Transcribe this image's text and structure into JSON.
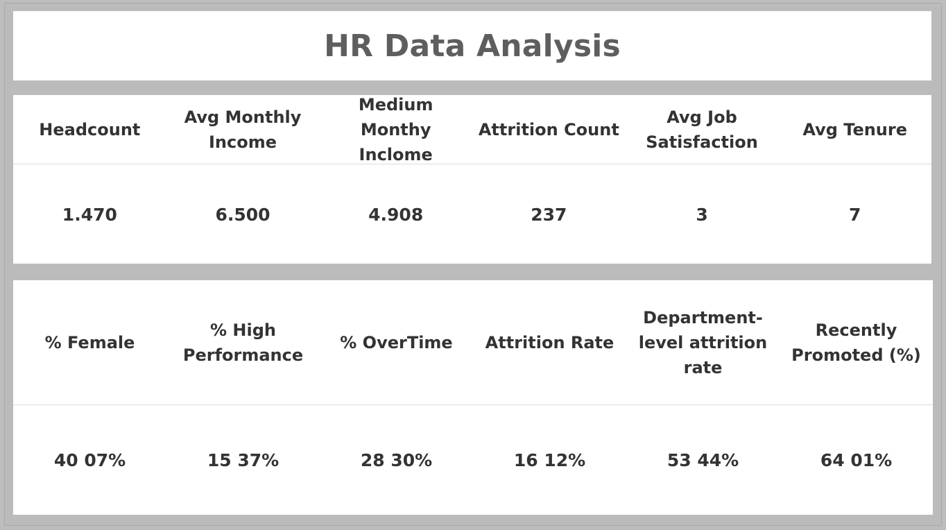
{
  "dashboard": {
    "title": "HR Data Analysis"
  },
  "section1": {
    "headers": [
      "Headcount",
      "Avg Monthly Income",
      "Medium Monthy Inclome",
      "Attrition Count",
      "Avg Job Satisfaction",
      "Avg Tenure"
    ],
    "values": [
      "1.470",
      "6.500",
      "4.908",
      "237",
      "3",
      "7"
    ]
  },
  "section2": {
    "headers": [
      "% Female",
      "% High Performance",
      "% OverTime",
      "Attrition Rate",
      "Department-level attrition rate",
      "Recently Promoted (%)"
    ],
    "values": [
      "40 07%",
      "15 37%",
      "28 30%",
      "16 12%",
      "53 44%",
      "64 01%"
    ]
  },
  "colors": {
    "background": "#bdbdbd",
    "panel": "#ffffff",
    "title_text": "#5e5e5e",
    "body_text": "#333333",
    "divider": "#dcdcdc"
  }
}
